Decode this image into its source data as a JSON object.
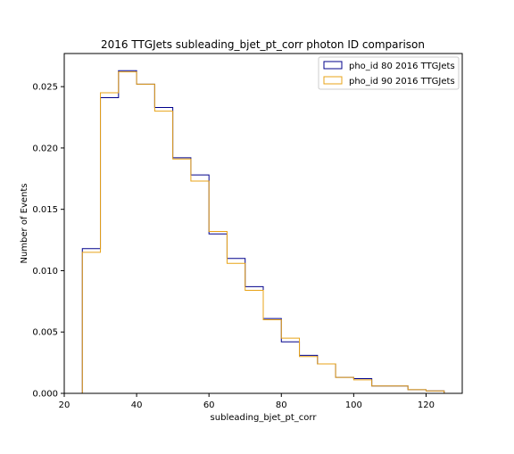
{
  "chart_data": {
    "type": "histogram-step",
    "title": "2016 TTGJets subleading_bjet_pt_corr photon ID comparison",
    "xlabel": "subleading_bjet_pt_corr",
    "ylabel": "Number of Events",
    "xlim": [
      20,
      130
    ],
    "ylim": [
      0,
      0.0277
    ],
    "xticks": [
      20,
      40,
      60,
      80,
      100,
      120
    ],
    "yticks": [
      0.0,
      0.005,
      0.01,
      0.015,
      0.02,
      0.025
    ],
    "xtick_labels": [
      "20",
      "40",
      "60",
      "80",
      "100",
      "120"
    ],
    "ytick_labels": [
      "0.000",
      "0.005",
      "0.010",
      "0.015",
      "0.020",
      "0.025"
    ],
    "bin_edges": [
      25,
      30,
      35,
      40,
      45,
      50,
      55,
      60,
      65,
      70,
      75,
      80,
      85,
      90,
      95,
      100,
      105,
      110,
      115,
      120,
      125
    ],
    "series": [
      {
        "name": "pho_id 80 2016 TTGJets",
        "color": "#00008b",
        "values": [
          0.0118,
          0.0241,
          0.0263,
          0.0252,
          0.0233,
          0.0192,
          0.0178,
          0.013,
          0.011,
          0.0087,
          0.0061,
          0.0042,
          0.0031,
          0.0024,
          0.0013,
          0.0012,
          0.0006,
          0.0006,
          0.0003,
          0.0002
        ]
      },
      {
        "name": "pho_id 90 2016 TTGJets",
        "color": "#e8a317",
        "values": [
          0.0115,
          0.0245,
          0.0262,
          0.0252,
          0.023,
          0.0191,
          0.0173,
          0.0132,
          0.0106,
          0.0084,
          0.006,
          0.0045,
          0.003,
          0.0024,
          0.0013,
          0.0011,
          0.0006,
          0.0006,
          0.0003,
          0.0002
        ]
      }
    ],
    "legend_position": "top-right",
    "grid": false
  }
}
